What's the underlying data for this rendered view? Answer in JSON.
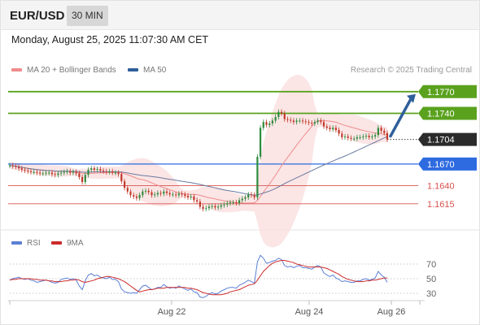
{
  "header": {
    "symbol": "EUR/USD",
    "timeframe": "30 MIN"
  },
  "datetime": "Monday, August 25, 2025 11:07:30 AM CET",
  "legend": {
    "ma20_label": "MA 20 + Bollinger Bands",
    "ma50_label": "MA 50"
  },
  "credit": "Research © 2025 Trading Central",
  "rsi_legend": {
    "rsi_label": "RSI",
    "ma_label": "9MA"
  },
  "colors": {
    "green": "#5aa21e",
    "blue": "#2e6be0",
    "red": "#d9534f",
    "dark": "#2b2b2b",
    "arrow": "#2f5f9a",
    "band": "#fadcdc",
    "ma20": "#f08c8c",
    "ma50": "#6a7aa0",
    "candle_up": "#2e8b3e",
    "candle_down": "#c0392b",
    "rsi": "#5b7fd6",
    "rsi_ma": "#cc2b2b"
  },
  "chart_data": [
    {
      "type": "candlestick",
      "title": "EUR/USD 30 MIN",
      "ylim": [
        1.158,
        1.179
      ],
      "x_ticks": [
        "Aug 22",
        "Aug 24",
        "Aug 26"
      ],
      "price_levels": [
        {
          "value": 1.177,
          "label": "1.1770",
          "style": "resistance"
        },
        {
          "value": 1.174,
          "label": "1.1740",
          "style": "resistance"
        },
        {
          "value": 1.1704,
          "label": "1.1704",
          "style": "last"
        },
        {
          "value": 1.167,
          "label": "1.1670",
          "style": "support"
        },
        {
          "value": 1.164,
          "label": "1.1640",
          "style": "minor"
        },
        {
          "value": 1.1615,
          "label": "1.1615",
          "style": "minor"
        }
      ],
      "close": [
        1.1668,
        1.1667,
        1.1666,
        1.1664,
        1.1662,
        1.1661,
        1.166,
        1.1659,
        1.1659,
        1.1658,
        1.1657,
        1.1657,
        1.1658,
        1.1658,
        1.1656,
        1.1655,
        1.1657,
        1.1658,
        1.1659,
        1.166,
        1.1658,
        1.1659,
        1.1657,
        1.1652,
        1.1645,
        1.1655,
        1.1662,
        1.1664,
        1.1662,
        1.1663,
        1.1661,
        1.166,
        1.1659,
        1.166,
        1.1658,
        1.1658,
        1.1656,
        1.1646,
        1.1637,
        1.1632,
        1.1627,
        1.1625,
        1.1623,
        1.1627,
        1.1632,
        1.1633,
        1.1631,
        1.1627,
        1.1628,
        1.163,
        1.1629,
        1.1632,
        1.163,
        1.1628,
        1.1628,
        1.1627,
        1.1629,
        1.1628,
        1.1626,
        1.1624,
        1.1625,
        1.162,
        1.1618,
        1.1611,
        1.1608,
        1.1609,
        1.1611,
        1.1612,
        1.161,
        1.1611,
        1.1613,
        1.1614,
        1.1616,
        1.1617,
        1.1617,
        1.1616,
        1.162,
        1.1622,
        1.1624,
        1.1628,
        1.1627,
        1.1624,
        1.168,
        1.172,
        1.1728,
        1.1724,
        1.1726,
        1.173,
        1.1735,
        1.1742,
        1.174,
        1.1732,
        1.1731,
        1.173,
        1.1728,
        1.173,
        1.173,
        1.1729,
        1.1728,
        1.1727,
        1.1726,
        1.1728,
        1.173,
        1.1728,
        1.1722,
        1.172,
        1.1718,
        1.172,
        1.1717,
        1.1712,
        1.1707,
        1.1708,
        1.1706,
        1.1705,
        1.1705,
        1.1707,
        1.1707,
        1.1708,
        1.1709,
        1.1707,
        1.1708,
        1.171,
        1.172,
        1.1716,
        1.1713,
        1.1704
      ]
    },
    {
      "type": "line",
      "title": "RSI",
      "ylim": [
        20,
        80
      ],
      "y_ticks": [
        70,
        50,
        30
      ],
      "series": [
        {
          "name": "RSI",
          "values": [
            48,
            50,
            51,
            52,
            50,
            49,
            50,
            48,
            47,
            45,
            46,
            47,
            48,
            47,
            45,
            44,
            45,
            49,
            50,
            51,
            49,
            50,
            48,
            40,
            35,
            47,
            55,
            57,
            54,
            55,
            52,
            51,
            50,
            52,
            49,
            49,
            46,
            36,
            32,
            31,
            30,
            31,
            30,
            35,
            40,
            41,
            38,
            35,
            36,
            38,
            38,
            42,
            39,
            37,
            38,
            37,
            40,
            38,
            36,
            34,
            36,
            32,
            31,
            25,
            24,
            26,
            29,
            31,
            29,
            30,
            33,
            35,
            37,
            38,
            38,
            37,
            41,
            43,
            45,
            48,
            46,
            44,
            73,
            82,
            78,
            71,
            72,
            74,
            75,
            78,
            76,
            68,
            66,
            67,
            65,
            67,
            68,
            65,
            65,
            64,
            63,
            66,
            68,
            66,
            58,
            55,
            53,
            55,
            51,
            49,
            46,
            47,
            46,
            45,
            45,
            47,
            47,
            49,
            50,
            48,
            49,
            51,
            60,
            55,
            52,
            45
          ]
        },
        {
          "name": "9MA",
          "values": [
            48,
            49,
            49,
            50,
            50,
            50,
            50,
            50,
            49,
            49,
            48,
            48,
            48,
            47,
            47,
            46,
            46,
            46,
            47,
            47,
            48,
            48,
            49,
            48,
            46,
            45,
            46,
            47,
            48,
            50,
            51,
            52,
            53,
            53,
            52,
            51,
            50,
            48,
            46,
            43,
            40,
            37,
            34,
            32,
            33,
            34,
            35,
            35,
            36,
            37,
            37,
            37,
            38,
            38,
            38,
            38,
            38,
            38,
            38,
            37,
            37,
            36,
            35,
            33,
            31,
            30,
            29,
            28,
            28,
            28,
            28,
            29,
            30,
            32,
            33,
            34,
            35,
            37,
            39,
            41,
            42,
            43,
            48,
            54,
            60,
            64,
            68,
            71,
            73,
            74,
            75,
            75,
            74,
            73,
            72,
            70,
            69,
            68,
            67,
            66,
            66,
            66,
            66,
            66,
            65,
            64,
            62,
            60,
            58,
            56,
            53,
            51,
            49,
            48,
            47,
            46,
            46,
            46,
            47,
            47,
            48,
            48,
            49,
            50,
            51,
            51
          ]
        }
      ]
    }
  ]
}
